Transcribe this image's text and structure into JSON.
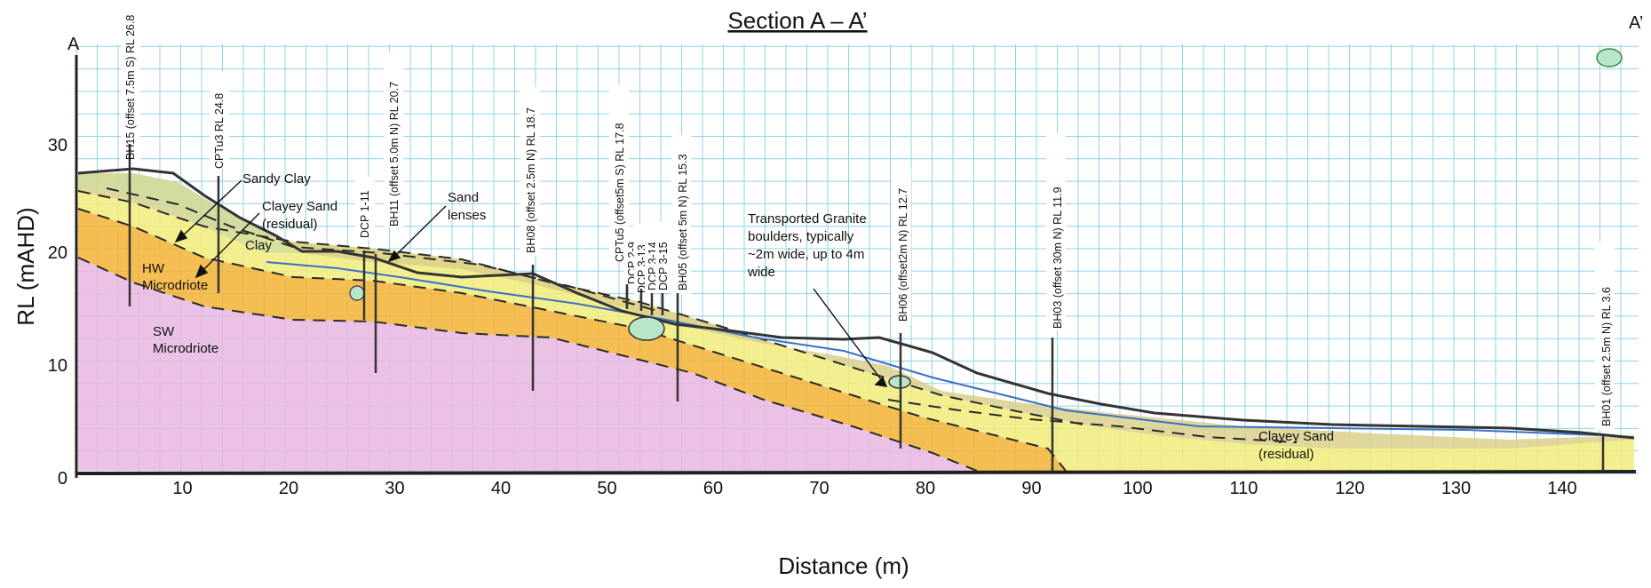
{
  "title": "Section A – A’",
  "end_labels": {
    "left": "A",
    "right": "A’"
  },
  "axes": {
    "ylabel": "RL (mAHD)",
    "xlabel": "Distance (m)",
    "y_ticks": [
      "0",
      "10",
      "20",
      "30"
    ],
    "x_ticks": [
      "10",
      "20",
      "30",
      "40",
      "50",
      "60",
      "70",
      "80",
      "90",
      "100",
      "110",
      "120",
      "130",
      "140"
    ]
  },
  "boreholes": [
    {
      "label": "BH15 (offset 7.5m S) RL 26.8"
    },
    {
      "label": "CPTu3 RL 24.8"
    },
    {
      "label": "DCP 1-11"
    },
    {
      "label": "BH11 (offset 5.0m N) RL 20.7"
    },
    {
      "label": "BH08 (offset 2.5m N) RL 18.7"
    },
    {
      "label": "CPTu5 (offset5m S) RL 17.8"
    },
    {
      "label": "DCP 2-9"
    },
    {
      "label": "DCP 3-13"
    },
    {
      "label": "DCP 3-14"
    },
    {
      "label": "DCP 3-15"
    },
    {
      "label": "BH05 (offset 5m N) RL 15.3"
    },
    {
      "label": "BH06 (offset2m N) RL 12.7"
    },
    {
      "label": "BH03 (offset 30m N) RL 11.9"
    },
    {
      "label": "BH01 (offset 2.5m N) RL 3.6"
    }
  ],
  "annotations": {
    "sandy_clay": "Sandy Clay",
    "clayey_sand_1": "Clayey Sand",
    "clayey_sand_1b": "(residual)",
    "clay": "Clay",
    "sand_1": "Sand",
    "sand_2": "lenses",
    "hw_1": "HW",
    "hw_2": "Microdriote",
    "sw_1": "SW",
    "sw_2": "Microdriote",
    "boulders_1": "Transported Granite",
    "boulders_2": "boulders, typically",
    "boulders_3": "~2m wide, up to 4m",
    "boulders_4": "wide",
    "clayey_sand_2": "Clayey Sand",
    "clayey_sand_2b": "(residual)"
  },
  "colors": {
    "grid": "#8fd3ea",
    "ground_line": "#333333",
    "sw_microdiorite": "#e9b6e2",
    "hw_microdiorite": "#f2b335",
    "residual_clayey_sand": "#f2ec7a",
    "clay": "#dccf86",
    "sandy_clay": "#cfdca0",
    "boulder": "#b8e6c8"
  }
}
